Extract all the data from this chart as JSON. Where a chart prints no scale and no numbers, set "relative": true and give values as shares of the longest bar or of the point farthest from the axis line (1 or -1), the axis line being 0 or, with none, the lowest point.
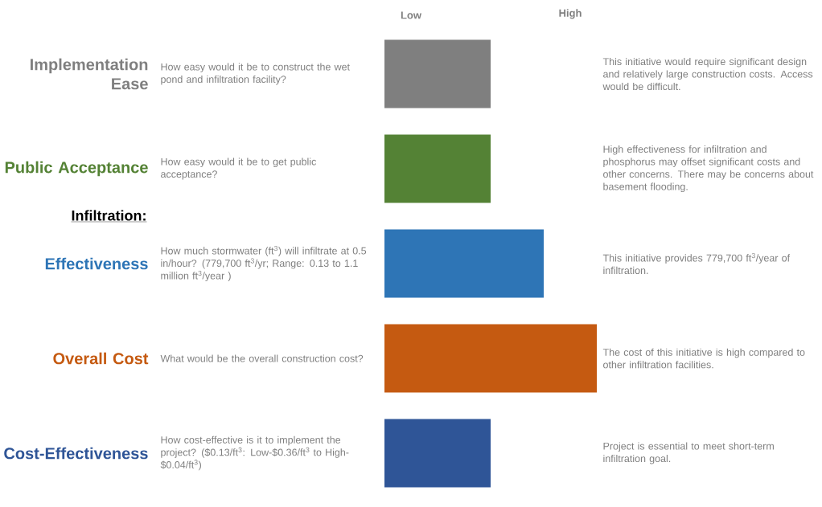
{
  "chart_data": {
    "type": "bar",
    "orientation": "horizontal",
    "relative": true,
    "categories": [
      "Implementation Ease",
      "Public Acceptance",
      "Effectiveness",
      "Overall Cost",
      "Cost-Effectiveness"
    ],
    "values": [
      0.5,
      0.5,
      0.75,
      1,
      0.5
    ],
    "colors": [
      "#7f7f7f",
      "#548235",
      "#2e75b6",
      "#c55a11",
      "#2f5597"
    ],
    "annotations": [
      "Low",
      "High",
      "Infiltration:",
      "How easy would it be to construct the wet pond and infiltration facility?",
      "How easy would it be to get public acceptance?",
      "How much stormwater (ft$^{3}$) will infiltrate at 0.5 in/hour? (779,700 ft$^{3}$/yr; Range:  0.13 to 1.1 million ft$^{3}$/year )",
      "What would be the overall construction cost?",
      "How cost-effective is it to implement the project? ($0.13/ft$^{3}$: Low-$0.36/ft$^{3}$ to High-$0.04/ft$^{3}$)",
      "This initiative would require significant design and relatively large construction costs.  Access would be difficult.",
      "High effectiveness for infiltration and phosphorus may offset significant costs and other concerns.  There may be concerns about basement flooding.",
      "This initiative provides  779,700 ft$^{3}$/year of infiltration.",
      "The cost of this initiative is high compared to other infiltration facilities.",
      "Project is essential to meet short-term infiltration goal."
    ]
  }
}
